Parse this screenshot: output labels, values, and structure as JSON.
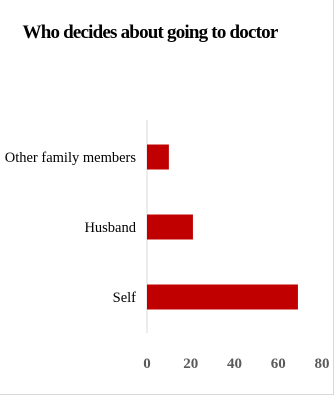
{
  "chart_data": {
    "type": "bar",
    "orientation": "horizontal",
    "title": "Who decides about going to doctor",
    "xlabel": "",
    "ylabel": "",
    "categories": [
      "Other family members",
      "Husband",
      "Self"
    ],
    "values": [
      10,
      21,
      69
    ],
    "xlim": [
      0,
      80
    ],
    "xticks": [
      0,
      20,
      40,
      60,
      80
    ],
    "grid": false,
    "legend": "none",
    "bar_color": "#c00000",
    "axis_color": "#d9d9d9"
  }
}
